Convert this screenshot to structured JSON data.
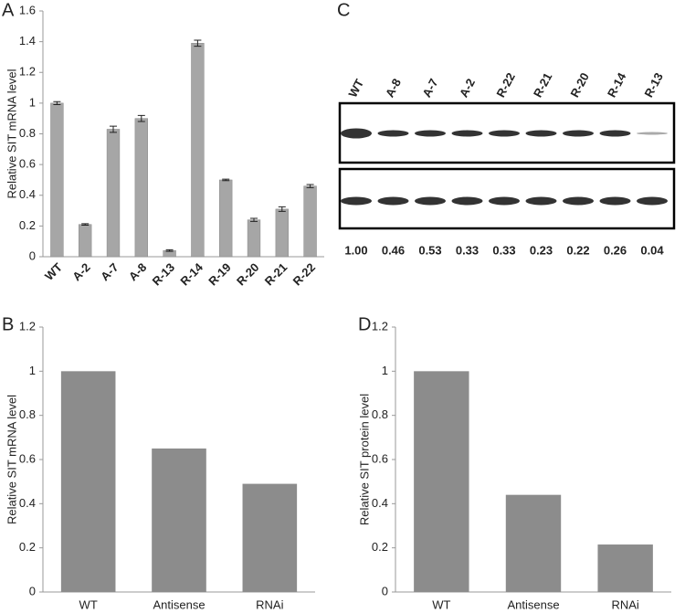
{
  "chart_data": [
    {
      "type": "bar",
      "label": "A",
      "y_label": "Relative SIT mRNA level",
      "categories": [
        "WT",
        "A-2",
        "A-7",
        "A-8",
        "R-13",
        "R-14",
        "R-19",
        "R-20",
        "R-21",
        "R-22"
      ],
      "values": [
        1.0,
        0.21,
        0.83,
        0.9,
        0.04,
        1.39,
        0.5,
        0.24,
        0.31,
        0.46
      ],
      "errors": [
        0.01,
        0.005,
        0.02,
        0.02,
        0.005,
        0.02,
        0.005,
        0.01,
        0.015,
        0.01
      ],
      "color": "#a6a6a6",
      "ylim": [
        0,
        1.6
      ],
      "yticks": [
        0,
        0.2,
        0.4,
        0.6,
        0.8,
        1,
        1.2,
        1.4,
        1.6
      ],
      "rotate_labels": true
    },
    {
      "type": "blot",
      "label": "C",
      "categories": [
        "WT",
        "A-8",
        "A-7",
        "A-2",
        "R-22",
        "R-21",
        "R-20",
        "R-14",
        "R-13"
      ],
      "values": [
        1.0,
        0.46,
        0.53,
        0.33,
        0.33,
        0.23,
        0.22,
        0.26,
        0.04
      ],
      "value_labels": [
        "1.00",
        "0.46",
        "0.53",
        "0.33",
        "0.33",
        "0.23",
        "0.22",
        "0.26",
        "0.04"
      ]
    },
    {
      "type": "bar",
      "label": "B",
      "y_label": "Relative SIT mRNA level",
      "categories": [
        "WT",
        "Antisense",
        "RNAi"
      ],
      "values": [
        1,
        0.65,
        0.49
      ],
      "color": "#8c8c8c",
      "ylim": [
        0,
        1.2
      ],
      "yticks": [
        0,
        0.2,
        0.4,
        0.6,
        0.8,
        1,
        1.2
      ]
    },
    {
      "type": "bar",
      "label": "D",
      "y_label": "Relative SIT protein level",
      "categories": [
        "WT",
        "Antisense",
        "RNAi"
      ],
      "values": [
        1,
        0.44,
        0.215
      ],
      "color": "#8c8c8c",
      "ylim": [
        0,
        1.2
      ],
      "yticks": [
        0,
        0.2,
        0.4,
        0.6,
        0.8,
        1,
        1.2
      ]
    }
  ]
}
